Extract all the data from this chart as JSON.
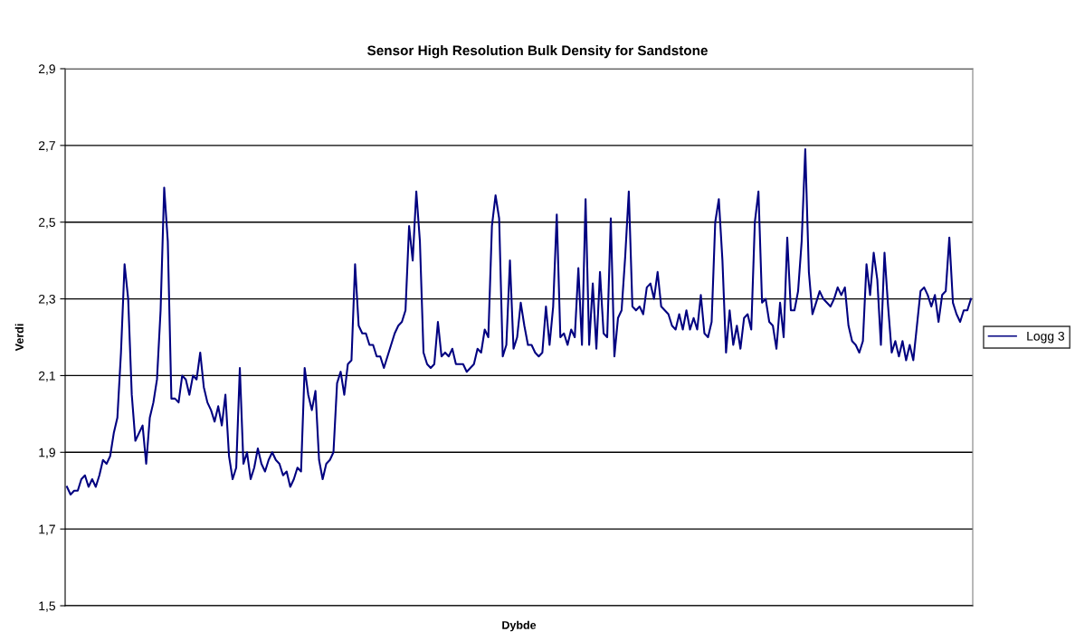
{
  "chart_data": {
    "type": "line",
    "title": "Sensor High Resolution Bulk Density for Sandstone",
    "xlabel": "Dybde",
    "ylabel": "Verdi",
    "ylim": [
      1.5,
      2.9
    ],
    "yticks": [
      {
        "value": 1.5,
        "label": "1,5"
      },
      {
        "value": 1.7,
        "label": "1,7"
      },
      {
        "value": 1.9,
        "label": "1,9"
      },
      {
        "value": 2.1,
        "label": "2,1"
      },
      {
        "value": 2.3,
        "label": "2,3"
      },
      {
        "value": 2.5,
        "label": "2,5"
      },
      {
        "value": 2.7,
        "label": "2,7"
      },
      {
        "value": 2.9,
        "label": "2,9"
      }
    ],
    "grid": "y",
    "legend": "right",
    "tick_labels": "y",
    "marker": "none",
    "line_style": "solid",
    "categories": [
      null,
      null,
      null,
      null,
      null,
      null,
      null,
      null,
      null,
      null,
      null,
      null,
      null,
      null,
      null,
      null,
      null,
      null,
      null,
      null,
      null,
      null,
      null,
      null,
      null,
      null,
      null,
      null,
      null,
      null,
      null,
      null,
      null,
      null,
      null,
      null,
      null,
      null,
      null,
      null,
      null,
      null,
      null,
      null,
      null,
      null,
      null,
      null,
      null,
      null,
      null,
      null,
      null,
      null,
      null,
      null,
      null,
      null,
      null,
      null,
      null,
      null,
      null,
      null,
      null,
      null,
      null,
      null,
      null,
      null,
      null,
      null,
      null,
      null,
      null,
      null,
      null,
      null,
      null,
      null,
      null,
      null,
      null,
      null,
      null,
      null,
      null,
      null,
      null,
      null,
      null,
      null,
      null,
      null,
      null,
      null,
      null,
      null,
      null,
      null,
      null,
      null,
      null,
      null,
      null,
      null,
      null,
      null,
      null,
      null,
      null,
      null,
      null,
      null,
      null,
      null,
      null,
      null,
      null,
      null,
      null,
      null,
      null,
      null,
      null,
      null,
      null,
      null,
      null,
      null,
      null,
      null,
      null,
      null,
      null,
      null,
      null,
      null,
      null,
      null,
      null,
      null,
      null,
      null,
      null,
      null,
      null,
      null,
      null,
      null,
      null,
      null,
      null,
      null,
      null,
      null,
      null,
      null,
      null,
      null,
      null,
      null,
      null,
      null,
      null,
      null,
      null,
      null,
      null,
      null,
      null,
      null,
      null,
      null,
      null,
      null,
      null,
      null,
      null,
      null,
      null,
      null,
      null,
      null,
      null,
      null,
      null,
      null,
      null,
      null,
      null,
      null,
      null,
      null,
      null,
      null,
      null,
      null,
      null,
      null,
      null,
      null,
      null,
      null,
      null,
      null,
      null,
      null,
      null,
      null,
      null,
      null,
      null,
      null,
      null,
      null,
      null,
      null,
      null,
      null,
      null,
      null,
      null,
      null,
      null,
      null,
      null,
      null,
      null,
      null,
      null,
      null,
      null,
      null,
      null,
      null,
      null,
      null,
      null,
      null,
      null,
      null,
      null,
      null,
      null,
      null,
      null,
      null,
      null,
      null,
      null,
      null
    ],
    "series": [
      {
        "name": "Logg 3",
        "color": "#000080",
        "values": [
          1.81,
          1.79,
          1.8,
          1.8,
          1.83,
          1.84,
          1.81,
          1.83,
          1.81,
          1.84,
          1.88,
          1.87,
          1.89,
          1.95,
          1.99,
          2.16,
          2.39,
          2.3,
          2.05,
          1.93,
          1.95,
          1.97,
          1.87,
          1.99,
          2.03,
          2.09,
          2.27,
          2.59,
          2.45,
          2.04,
          2.04,
          2.03,
          2.1,
          2.09,
          2.05,
          2.1,
          2.09,
          2.16,
          2.07,
          2.03,
          2.01,
          1.98,
          2.02,
          1.97,
          2.05,
          1.89,
          1.83,
          1.86,
          2.12,
          1.87,
          1.9,
          1.83,
          1.86,
          1.91,
          1.87,
          1.85,
          1.88,
          1.9,
          1.88,
          1.87,
          1.84,
          1.85,
          1.81,
          1.83,
          1.86,
          1.85,
          2.12,
          2.05,
          2.01,
          2.06,
          1.88,
          1.83,
          1.87,
          1.88,
          1.9,
          2.08,
          2.11,
          2.05,
          2.13,
          2.14,
          2.39,
          2.23,
          2.21,
          2.21,
          2.18,
          2.18,
          2.15,
          2.15,
          2.12,
          2.15,
          2.18,
          2.21,
          2.23,
          2.24,
          2.27,
          2.49,
          2.4,
          2.58,
          2.45,
          2.16,
          2.13,
          2.12,
          2.13,
          2.24,
          2.15,
          2.16,
          2.15,
          2.17,
          2.13,
          2.13,
          2.13,
          2.11,
          2.12,
          2.13,
          2.17,
          2.16,
          2.22,
          2.2,
          2.49,
          2.57,
          2.51,
          2.15,
          2.18,
          2.4,
          2.17,
          2.2,
          2.29,
          2.23,
          2.18,
          2.18,
          2.16,
          2.15,
          2.16,
          2.28,
          2.18,
          2.28,
          2.52,
          2.2,
          2.21,
          2.18,
          2.22,
          2.2,
          2.38,
          2.18,
          2.56,
          2.18,
          2.34,
          2.17,
          2.37,
          2.21,
          2.2,
          2.51,
          2.15,
          2.25,
          2.27,
          2.41,
          2.58,
          2.28,
          2.27,
          2.28,
          2.26,
          2.33,
          2.34,
          2.3,
          2.37,
          2.28,
          2.27,
          2.26,
          2.23,
          2.22,
          2.26,
          2.22,
          2.27,
          2.22,
          2.25,
          2.22,
          2.31,
          2.21,
          2.2,
          2.24,
          2.5,
          2.56,
          2.4,
          2.16,
          2.27,
          2.18,
          2.23,
          2.17,
          2.25,
          2.26,
          2.22,
          2.5,
          2.58,
          2.29,
          2.3,
          2.24,
          2.23,
          2.17,
          2.29,
          2.2,
          2.46,
          2.27,
          2.27,
          2.32,
          2.45,
          2.69,
          2.37,
          2.26,
          2.29,
          2.32,
          2.3,
          2.29,
          2.28,
          2.3,
          2.33,
          2.31,
          2.33,
          2.23,
          2.19,
          2.18,
          2.16,
          2.19,
          2.39,
          2.31,
          2.42,
          2.35,
          2.18,
          2.42,
          2.28,
          2.16,
          2.19,
          2.15,
          2.19,
          2.14,
          2.18,
          2.14,
          2.23,
          2.32,
          2.33,
          2.31,
          2.28,
          2.31,
          2.24,
          2.31,
          2.32,
          2.46,
          2.29,
          2.26,
          2.24,
          2.27,
          2.27,
          2.3
        ]
      }
    ]
  }
}
